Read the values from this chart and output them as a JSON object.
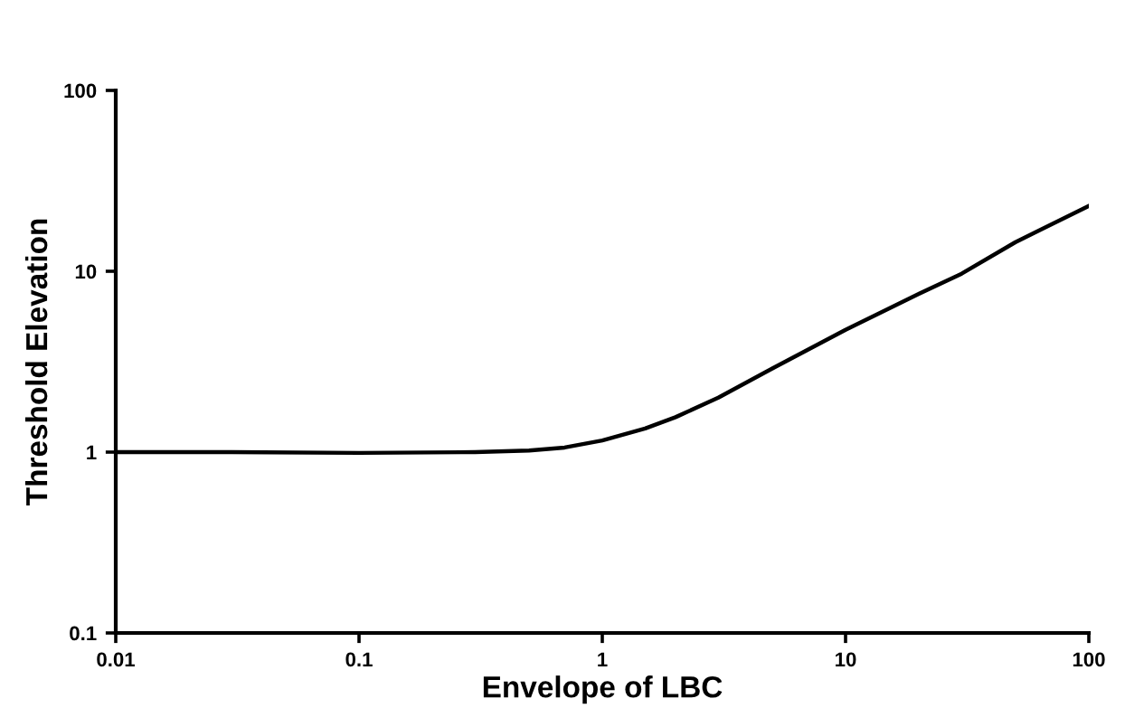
{
  "chart_data": {
    "type": "line",
    "xlabel": "Envelope of LBC",
    "ylabel": "Threshold Elevation",
    "log": "xy",
    "x": [
      0.01,
      0.03,
      0.1,
      0.3,
      0.5,
      0.7,
      1,
      1.5,
      2,
      3,
      5,
      10,
      20,
      30,
      50,
      100
    ],
    "series": [
      {
        "color": "#000000",
        "values": [
          1,
          1,
          0.99,
          1.0,
          1.02,
          1.06,
          1.16,
          1.35,
          1.56,
          2.0,
          2.9,
          4.75,
          7.5,
          9.7,
          14.5,
          23
        ]
      }
    ],
    "xlim": [
      0.01,
      100
    ],
    "ylim": [
      0.1,
      100
    ],
    "xticks": [
      0.01,
      0.1,
      1,
      10,
      100
    ],
    "yticks": [
      0.1,
      1,
      10,
      100
    ],
    "grid": false,
    "legend": false,
    "marker": "none",
    "line_style": "solid"
  }
}
